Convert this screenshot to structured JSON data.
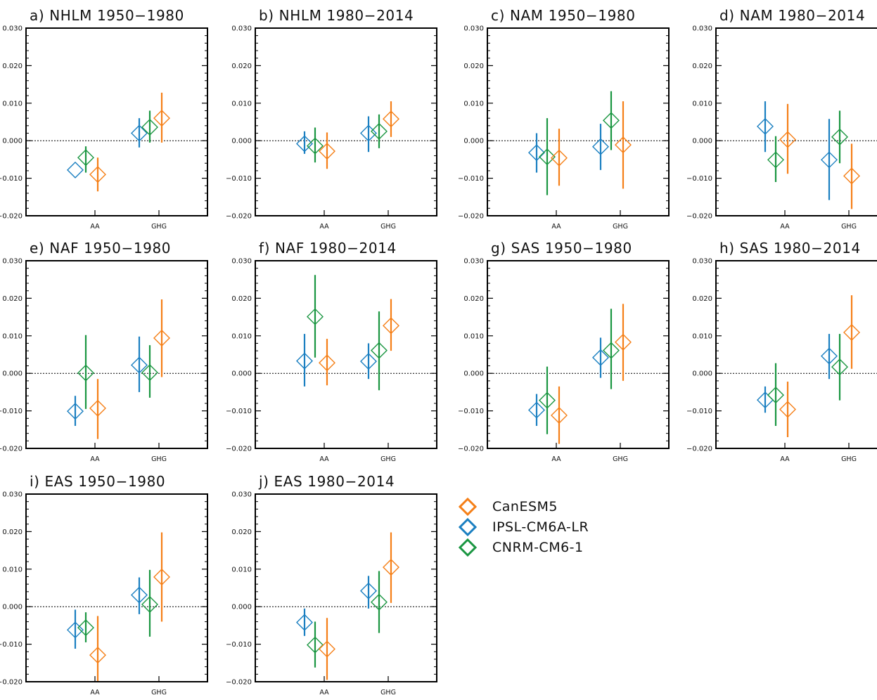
{
  "colors": {
    "CanESM5": "#f57f17",
    "IPSL-CM6A-LR": "#1a7fc1",
    "CNRM-CM6-1": "#1a9641",
    "axis": "#000000",
    "zero_line": "#000000"
  },
  "legend": {
    "items": [
      {
        "label": "CanESM5",
        "color": "#f57f17"
      },
      {
        "label": "IPSL-CM6A-LR",
        "color": "#1a7fc1"
      },
      {
        "label": "CNRM-CM6-1",
        "color": "#1a9641"
      }
    ]
  },
  "chart_data": [
    {
      "type": "scatter",
      "title": "a) NHLM 1950−1980",
      "categories": [
        "AA",
        "GHG"
      ],
      "ylim": [
        -0.02,
        0.03
      ],
      "yticks": [
        "0.030",
        "0.020",
        "0.010",
        "0.000",
        "−0.010",
        "−0.020"
      ],
      "series": [
        {
          "name": "IPSL-CM6A-LR",
          "values": [
            -0.0078,
            0.002
          ],
          "ranges": [
            [
              -0.0078,
              -0.0078
            ],
            [
              -0.0018,
              0.006
            ]
          ]
        },
        {
          "name": "CNRM-CM6-1",
          "values": [
            -0.0045,
            0.0036
          ],
          "ranges": [
            [
              -0.0085,
              -0.0015
            ],
            [
              -0.0005,
              0.008
            ]
          ]
        },
        {
          "name": "CanESM5",
          "values": [
            -0.009,
            0.006
          ],
          "ranges": [
            [
              -0.0135,
              -0.0045
            ],
            [
              -0.0005,
              0.0128
            ]
          ]
        }
      ]
    },
    {
      "type": "scatter",
      "title": "b) NHLM 1980−2014",
      "categories": [
        "AA",
        "GHG"
      ],
      "ylim": [
        -0.02,
        0.03
      ],
      "yticks": [
        "0.030",
        "0.020",
        "0.010",
        "0.000",
        "−0.010",
        "−0.020"
      ],
      "series": [
        {
          "name": "IPSL-CM6A-LR",
          "values": [
            -0.0008,
            0.002
          ],
          "ranges": [
            [
              -0.0035,
              0.0025
            ],
            [
              -0.003,
              0.0065
            ]
          ]
        },
        {
          "name": "CNRM-CM6-1",
          "values": [
            -0.0014,
            0.0025
          ],
          "ranges": [
            [
              -0.0058,
              0.0035
            ],
            [
              -0.002,
              0.007
            ]
          ]
        },
        {
          "name": "CanESM5",
          "values": [
            -0.0028,
            0.0058
          ],
          "ranges": [
            [
              -0.0075,
              0.0022
            ],
            [
              0.001,
              0.0105
            ]
          ]
        }
      ]
    },
    {
      "type": "scatter",
      "title": "c) NAM 1950−1980",
      "categories": [
        "AA",
        "GHG"
      ],
      "ylim": [
        -0.02,
        0.03
      ],
      "yticks": [
        "0.030",
        "0.020",
        "0.010",
        "0.000",
        "−0.010",
        "−0.020"
      ],
      "series": [
        {
          "name": "IPSL-CM6A-LR",
          "values": [
            -0.0032,
            -0.0016
          ],
          "ranges": [
            [
              -0.0085,
              0.002
            ],
            [
              -0.0078,
              0.0045
            ]
          ]
        },
        {
          "name": "CNRM-CM6-1",
          "values": [
            -0.0043,
            0.0054
          ],
          "ranges": [
            [
              -0.0145,
              0.006
            ],
            [
              -0.0025,
              0.0132
            ]
          ]
        },
        {
          "name": "CanESM5",
          "values": [
            -0.0046,
            -0.0011
          ],
          "ranges": [
            [
              -0.012,
              0.0032
            ],
            [
              -0.0128,
              0.0105
            ]
          ]
        }
      ]
    },
    {
      "type": "scatter",
      "title": "d) NAM 1980−2014",
      "categories": [
        "AA",
        "GHG"
      ],
      "ylim": [
        -0.02,
        0.03
      ],
      "yticks": [
        "0.030",
        "0.020",
        "0.010",
        "0.000",
        "−0.010",
        "−0.020"
      ],
      "series": [
        {
          "name": "IPSL-CM6A-LR",
          "values": [
            0.0038,
            -0.0051
          ],
          "ranges": [
            [
              -0.003,
              0.0105
            ],
            [
              -0.0158,
              0.0058
            ]
          ]
        },
        {
          "name": "CNRM-CM6-1",
          "values": [
            -0.0051,
            0.001
          ],
          "ranges": [
            [
              -0.011,
              0.0012
            ],
            [
              -0.006,
              0.008
            ]
          ]
        },
        {
          "name": "CanESM5",
          "values": [
            0.0003,
            -0.0094
          ],
          "ranges": [
            [
              -0.0088,
              0.0098
            ],
            [
              -0.0182,
              -0.0008
            ]
          ]
        }
      ]
    },
    {
      "type": "scatter",
      "title": "e) NAF 1950−1980",
      "categories": [
        "AA",
        "GHG"
      ],
      "ylim": [
        -0.02,
        0.03
      ],
      "yticks": [
        "0.030",
        "0.020",
        "0.010",
        "0.000",
        "−0.010",
        "−0.020"
      ],
      "series": [
        {
          "name": "IPSL-CM6A-LR",
          "values": [
            -0.0101,
            0.0022
          ],
          "ranges": [
            [
              -0.014,
              -0.006
            ],
            [
              -0.005,
              0.0098
            ]
          ]
        },
        {
          "name": "CNRM-CM6-1",
          "values": [
            0.0001,
            0.0002
          ],
          "ranges": [
            [
              -0.0095,
              0.0102
            ],
            [
              -0.0065,
              0.0075
            ]
          ]
        },
        {
          "name": "CanESM5",
          "values": [
            -0.0093,
            0.0094
          ],
          "ranges": [
            [
              -0.0175,
              -0.0015
            ],
            [
              -0.001,
              0.0197
            ]
          ]
        }
      ]
    },
    {
      "type": "scatter",
      "title": "f) NAF 1980−2014",
      "categories": [
        "AA",
        "GHG"
      ],
      "ylim": [
        -0.02,
        0.03
      ],
      "yticks": [
        "0.030",
        "0.020",
        "0.010",
        "0.000",
        "−0.010",
        "−0.020"
      ],
      "series": [
        {
          "name": "IPSL-CM6A-LR",
          "values": [
            0.0033,
            0.0032
          ],
          "ranges": [
            [
              -0.0035,
              0.0105
            ],
            [
              -0.0015,
              0.008
            ]
          ]
        },
        {
          "name": "CNRM-CM6-1",
          "values": [
            0.0151,
            0.0061
          ],
          "ranges": [
            [
              0.0042,
              0.0262
            ],
            [
              -0.0045,
              0.0165
            ]
          ]
        },
        {
          "name": "CanESM5",
          "values": [
            0.0028,
            0.0127
          ],
          "ranges": [
            [
              -0.0032,
              0.0092
            ],
            [
              0.006,
              0.0198
            ]
          ]
        }
      ]
    },
    {
      "type": "scatter",
      "title": "g) SAS 1950−1980",
      "categories": [
        "AA",
        "GHG"
      ],
      "ylim": [
        -0.02,
        0.03
      ],
      "yticks": [
        "0.030",
        "0.020",
        "0.010",
        "0.000",
        "−0.010",
        "−0.020"
      ],
      "series": [
        {
          "name": "IPSL-CM6A-LR",
          "values": [
            -0.0098,
            0.0042
          ],
          "ranges": [
            [
              -0.014,
              -0.0055
            ],
            [
              -0.0012,
              0.0095
            ]
          ]
        },
        {
          "name": "CNRM-CM6-1",
          "values": [
            -0.0072,
            0.0061
          ],
          "ranges": [
            [
              -0.0162,
              0.0018
            ],
            [
              -0.0042,
              0.0172
            ]
          ]
        },
        {
          "name": "CanESM5",
          "values": [
            -0.0112,
            0.0083
          ],
          "ranges": [
            [
              -0.0188,
              -0.0035
            ],
            [
              -0.002,
              0.0185
            ]
          ]
        }
      ]
    },
    {
      "type": "scatter",
      "title": "h) SAS 1980−2014",
      "categories": [
        "AA",
        "GHG"
      ],
      "ylim": [
        -0.02,
        0.03
      ],
      "yticks": [
        "0.030",
        "0.020",
        "0.010",
        "0.000",
        "−0.010",
        "−0.020"
      ],
      "series": [
        {
          "name": "IPSL-CM6A-LR",
          "values": [
            -0.0071,
            0.0046
          ],
          "ranges": [
            [
              -0.0105,
              -0.0035
            ],
            [
              -0.0015,
              0.0105
            ]
          ]
        },
        {
          "name": "CNRM-CM6-1",
          "values": [
            -0.0058,
            0.0017
          ],
          "ranges": [
            [
              -0.014,
              0.0027
            ],
            [
              -0.0072,
              0.0105
            ]
          ]
        },
        {
          "name": "CanESM5",
          "values": [
            -0.0096,
            0.0109
          ],
          "ranges": [
            [
              -0.017,
              -0.0022
            ],
            [
              0.0012,
              0.0208
            ]
          ]
        }
      ]
    },
    {
      "type": "scatter",
      "title": "i) EAS 1950−1980",
      "categories": [
        "AA",
        "GHG"
      ],
      "ylim": [
        -0.02,
        0.03
      ],
      "yticks": [
        "0.030",
        "0.020",
        "0.010",
        "0.000",
        "−0.010",
        "−0.020"
      ],
      "series": [
        {
          "name": "IPSL-CM6A-LR",
          "values": [
            -0.0062,
            0.0031
          ],
          "ranges": [
            [
              -0.0112,
              -0.0008
            ],
            [
              -0.002,
              0.0078
            ]
          ]
        },
        {
          "name": "CNRM-CM6-1",
          "values": [
            -0.0056,
            0.0006
          ],
          "ranges": [
            [
              -0.0095,
              -0.0015
            ],
            [
              -0.008,
              0.0098
            ]
          ]
        },
        {
          "name": "CanESM5",
          "values": [
            -0.0129,
            0.0079
          ],
          "ranges": [
            [
              -0.0198,
              -0.0025
            ],
            [
              -0.004,
              0.0198
            ]
          ]
        }
      ]
    },
    {
      "type": "scatter",
      "title": "j) EAS 1980−2014",
      "categories": [
        "AA",
        "GHG"
      ],
      "ylim": [
        -0.02,
        0.03
      ],
      "yticks": [
        "0.030",
        "0.020",
        "0.010",
        "0.000",
        "−0.010",
        "−0.020"
      ],
      "series": [
        {
          "name": "IPSL-CM6A-LR",
          "values": [
            -0.0042,
            0.0042
          ],
          "ranges": [
            [
              -0.0078,
              -0.0005
            ],
            [
              -0.0005,
              0.0082
            ]
          ]
        },
        {
          "name": "CNRM-CM6-1",
          "values": [
            -0.0102,
            0.0012
          ],
          "ranges": [
            [
              -0.0162,
              -0.004
            ],
            [
              -0.007,
              0.0095
            ]
          ]
        },
        {
          "name": "CanESM5",
          "values": [
            -0.0113,
            0.0105
          ],
          "ranges": [
            [
              -0.0195,
              -0.003
            ],
            [
              0.001,
              0.0198
            ]
          ]
        }
      ]
    }
  ]
}
